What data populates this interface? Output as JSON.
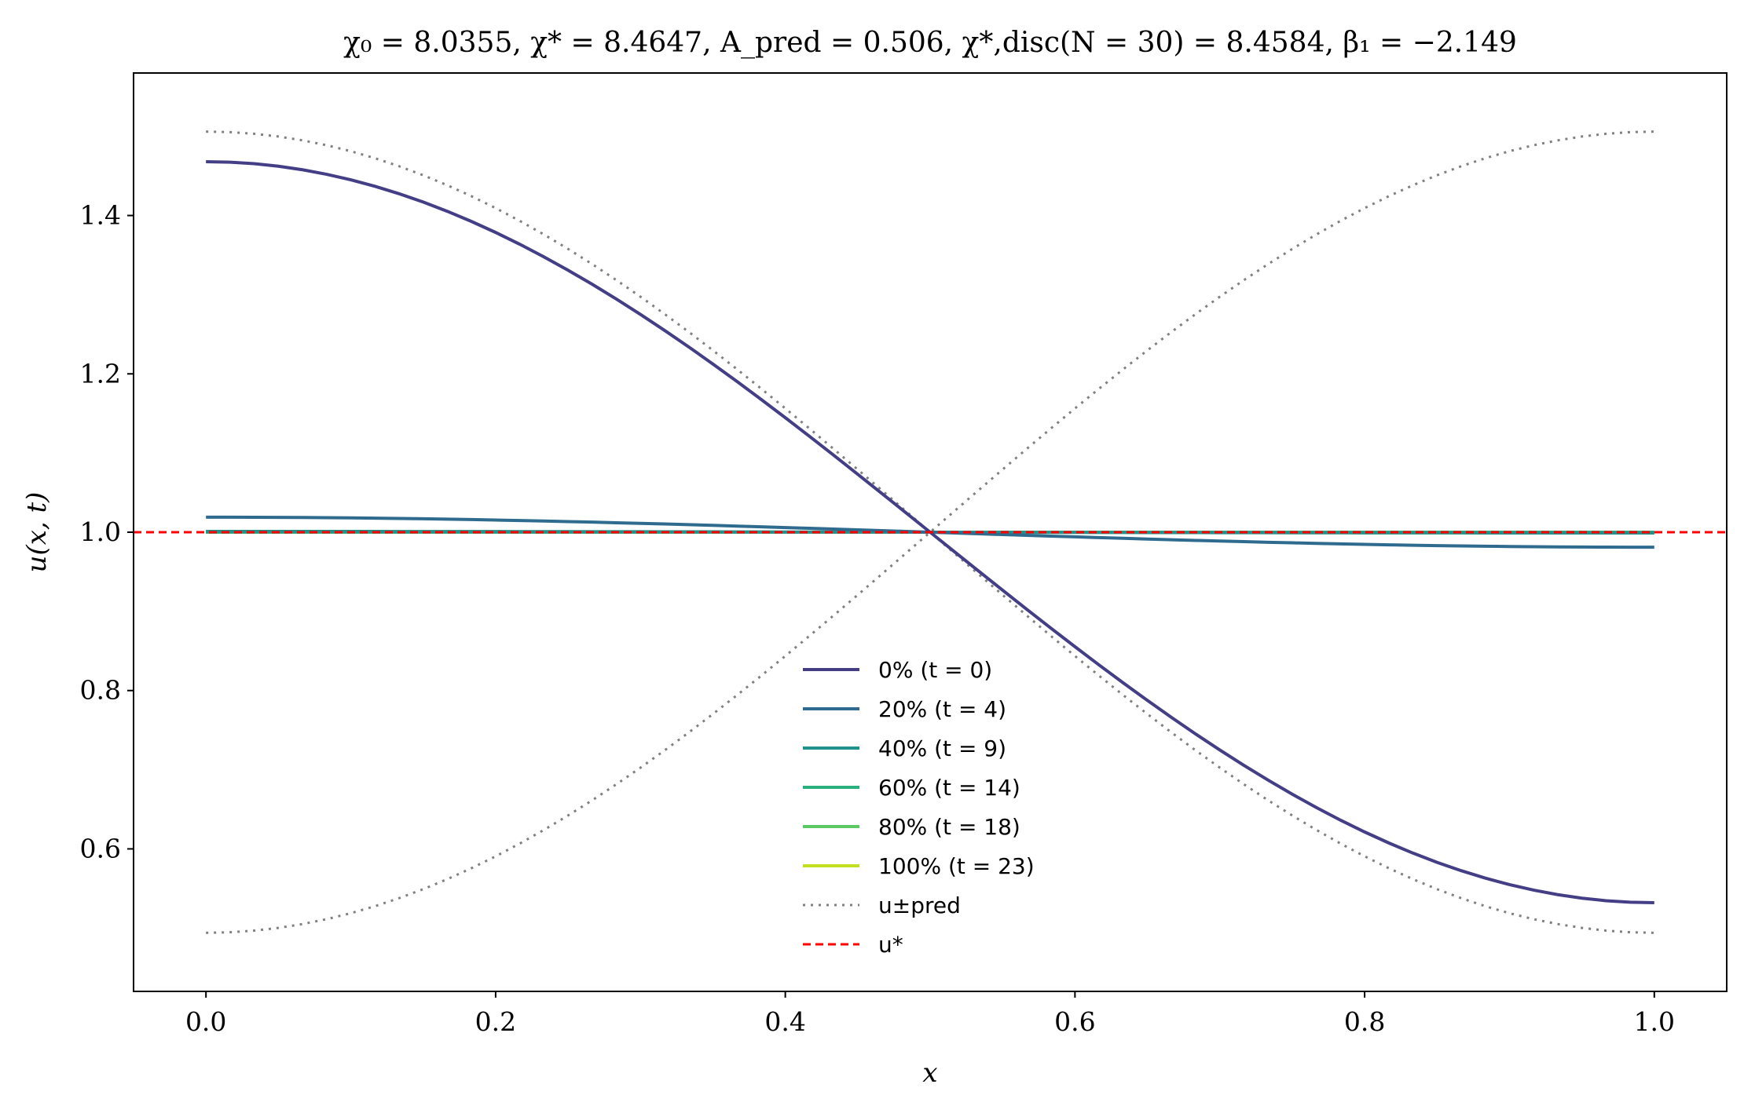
{
  "chart_data": {
    "type": "line",
    "title": "χ₀ = 8.0355,  χ* = 8.4647,  A_pred = 0.506,  χ*,disc(N = 30) = 8.4584,  β₁ = −2.149",
    "xlabel": "x",
    "ylabel": "u(x, t)",
    "xlim": [
      -0.05,
      1.05
    ],
    "ylim": [
      0.42,
      1.58
    ],
    "xticks": [
      0.0,
      0.2,
      0.4,
      0.6,
      0.8,
      1.0
    ],
    "xtick_labels": [
      "0.0",
      "0.2",
      "0.4",
      "0.6",
      "0.8",
      "1.0"
    ],
    "yticks": [
      0.6,
      0.8,
      1.0,
      1.2,
      1.4
    ],
    "ytick_labels": [
      "0.6",
      "0.8",
      "1.0",
      "1.2",
      "1.4"
    ],
    "grid": false,
    "legend_position": "lower-center",
    "series": [
      {
        "name": "0% (t = 0)",
        "style": "solid",
        "color": "#433e85",
        "amplitude": 0.468
      },
      {
        "name": "20% (t = 4)",
        "style": "solid",
        "color": "#2f6b8e",
        "amplitude": 0.019
      },
      {
        "name": "40% (t = 9)",
        "style": "solid",
        "color": "#21918c",
        "amplitude": 0.001
      },
      {
        "name": "60% (t = 14)",
        "style": "solid",
        "color": "#2ab07f",
        "amplitude": 0.0
      },
      {
        "name": "80% (t = 18)",
        "style": "solid",
        "color": "#5ec962",
        "amplitude": 0.0
      },
      {
        "name": "100% (t = 23)",
        "style": "solid",
        "color": "#c2df23",
        "amplitude": 0.0
      },
      {
        "name": "u±pred",
        "style": "dotted",
        "color": "#808080",
        "amplitude": 0.506,
        "both_signs": true
      },
      {
        "name": "u*",
        "style": "dashed",
        "color": "#ff0000",
        "constant": 1.0
      }
    ]
  }
}
